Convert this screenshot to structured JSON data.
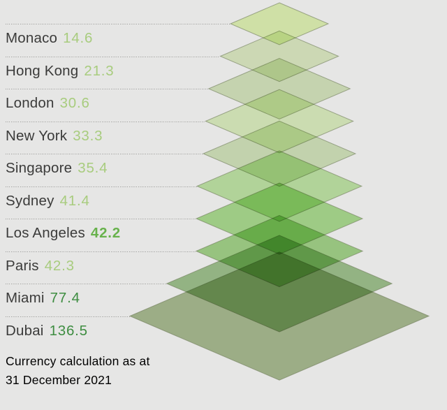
{
  "colors": {
    "background": "#e6e6e5",
    "label_text": "#3b3b3a",
    "separator": "#9a9a98",
    "diamond_stroke": "#7a8763",
    "value_light_green": "#a8cc7e",
    "value_mid_green_bold": "#68b24c",
    "value_dark_green": "#3e8d41"
  },
  "rows": [
    {
      "label": "Monaco",
      "value": "14.6",
      "value_style": "light"
    },
    {
      "label": "Hong Kong",
      "value": "21.3",
      "value_style": "light"
    },
    {
      "label": "London",
      "value": "30.6",
      "value_style": "light"
    },
    {
      "label": "New York",
      "value": "33.3",
      "value_style": "light"
    },
    {
      "label": "Singapore",
      "value": "35.4",
      "value_style": "light"
    },
    {
      "label": "Sydney",
      "value": "41.4",
      "value_style": "light"
    },
    {
      "label": "Los Angeles",
      "value": "42.2",
      "value_style": "bold"
    },
    {
      "label": "Paris",
      "value": "42.3",
      "value_style": "light"
    },
    {
      "label": "Miami",
      "value": "77.4",
      "value_style": "dark"
    },
    {
      "label": "Dubai",
      "value": "136.5",
      "value_style": "dark"
    }
  ],
  "footer": {
    "line1": "Currency calculation as at",
    "line2": "31 December 2021"
  },
  "chart_data": {
    "type": "bar",
    "variant": "stacked-diamond-pyramid",
    "title": "",
    "categories": [
      "Monaco",
      "Hong Kong",
      "London",
      "New York",
      "Singapore",
      "Sydney",
      "Los Angeles",
      "Paris",
      "Miami",
      "Dubai"
    ],
    "values": [
      14.6,
      21.3,
      30.6,
      33.3,
      35.4,
      41.4,
      42.2,
      42.3,
      77.4,
      136.5
    ],
    "footnote": "Currency calculation as at 31 December 2021",
    "encoding": "each value rendered as a flat diamond; diamond width proportional to sqrt(value); diamonds stacked vertically, semi-transparent multiply overlap",
    "legend_position": "left labels with dotted leader lines to each diamond's left vertex",
    "diamond_fills": [
      "#e6f9b9",
      "#e2f0c9",
      "#dbeac3",
      "#e1f4c5",
      "#d7e9c1",
      "#c5eaaa",
      "#afe194",
      "#a7d98d",
      "#a3c792",
      "#adc095"
    ]
  }
}
